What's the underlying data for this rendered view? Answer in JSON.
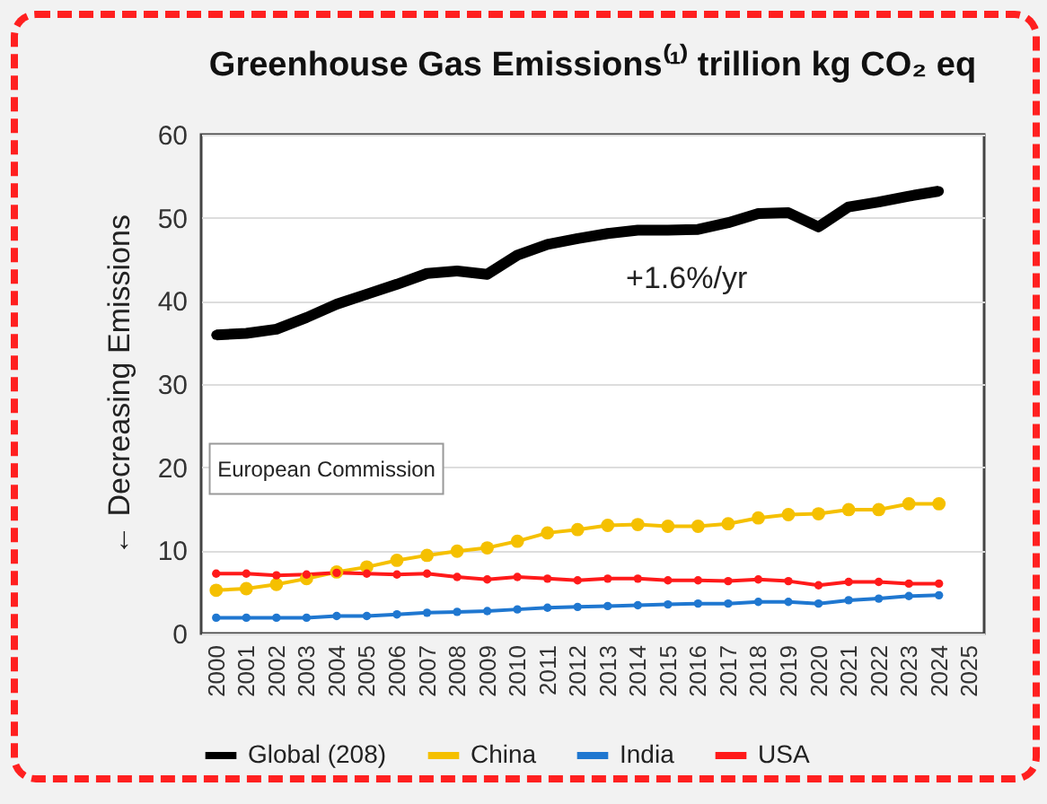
{
  "chart_data": {
    "type": "line",
    "title": "Greenhouse Gas Emissions⁽¹⁾ trillion kg CO₂ eq",
    "ylabel": "← Decreasing Emissions",
    "categories": [
      "2000",
      "2001",
      "2002",
      "2003",
      "2004",
      "2005",
      "2006",
      "2007",
      "2008",
      "2009",
      "2010",
      "2011",
      "2012",
      "2013",
      "2014",
      "2015",
      "2016",
      "2017",
      "2018",
      "2019",
      "2020",
      "2021",
      "2022",
      "2023",
      "2024",
      "2025"
    ],
    "series": [
      {
        "name": "Global (208)",
        "color": "#000000",
        "values": [
          35.9,
          36.1,
          36.6,
          38.0,
          39.6,
          40.8,
          42.0,
          43.3,
          43.6,
          43.2,
          45.5,
          46.8,
          47.5,
          48.1,
          48.5,
          48.5,
          48.6,
          49.4,
          50.5,
          50.6,
          48.9,
          51.3,
          51.9,
          52.6,
          53.2,
          null
        ]
      },
      {
        "name": "China",
        "color": "#f5c000",
        "values": [
          5.2,
          5.4,
          5.9,
          6.6,
          7.4,
          8.0,
          8.8,
          9.4,
          9.9,
          10.3,
          11.1,
          12.1,
          12.5,
          13.0,
          13.1,
          12.9,
          12.9,
          13.2,
          13.9,
          14.3,
          14.4,
          14.9,
          14.9,
          15.6,
          15.6,
          null
        ]
      },
      {
        "name": "India",
        "color": "#1f77d0",
        "values": [
          1.9,
          1.9,
          1.9,
          1.9,
          2.1,
          2.1,
          2.3,
          2.5,
          2.6,
          2.7,
          2.9,
          3.1,
          3.2,
          3.3,
          3.4,
          3.5,
          3.6,
          3.6,
          3.8,
          3.8,
          3.6,
          4.0,
          4.2,
          4.5,
          4.6,
          null
        ]
      },
      {
        "name": "USA",
        "color": "#ff1a1a",
        "values": [
          7.2,
          7.2,
          7.0,
          7.1,
          7.3,
          7.2,
          7.1,
          7.2,
          6.8,
          6.5,
          6.8,
          6.6,
          6.4,
          6.6,
          6.6,
          6.4,
          6.4,
          6.3,
          6.5,
          6.3,
          5.8,
          6.2,
          6.2,
          6.0,
          6.0,
          null
        ]
      }
    ],
    "ylim": [
      0,
      60
    ],
    "yticks": [
      0,
      10,
      20,
      30,
      40,
      50,
      60
    ],
    "grid": "y",
    "legend": "bottom",
    "marker": "circle",
    "line_style": "solid",
    "annotations": [
      "+1.6%/yr",
      "European Commission"
    ]
  }
}
